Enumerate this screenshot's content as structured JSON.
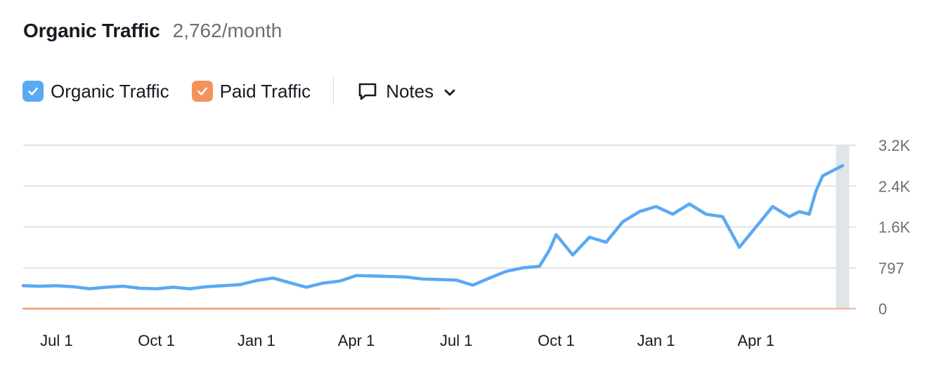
{
  "header": {
    "title": "Organic Traffic",
    "value": "2,762/month"
  },
  "legend": {
    "organic_label": "Organic Traffic",
    "paid_label": "Paid Traffic",
    "notes_label": "Notes",
    "icons": {
      "organic": "checkbox-checked-icon",
      "paid": "checkbox-checked-icon",
      "notes": "comment-icon",
      "dropdown": "chevron-down-icon"
    }
  },
  "colors": {
    "organic": "#5aa9f2",
    "paid": "#f2935a",
    "grid": "#e3e4ea",
    "highlight": "#dfe5e8"
  },
  "chart_data": {
    "type": "line",
    "y_axis": {
      "position": "right",
      "ylim": [
        0,
        3200
      ],
      "ticks": [
        0,
        797,
        1600,
        2400,
        3200
      ],
      "tick_labels": [
        "0",
        "797",
        "1.6K",
        "2.4K",
        "3.2K"
      ]
    },
    "x_axis": {
      "range": [
        0,
        25
      ],
      "ticks": [
        1,
        4,
        7,
        10,
        13,
        16,
        19,
        22
      ],
      "tick_labels": [
        "Jul 1",
        "Oct 1",
        "Jan 1",
        "Apr 1",
        "Jul 1",
        "Oct 1",
        "Jan 1",
        "Apr 1"
      ]
    },
    "grid": true,
    "series": [
      {
        "name": "Organic Traffic",
        "x": [
          0,
          0.5,
          1,
          1.5,
          2,
          2.5,
          3,
          3.5,
          4,
          4.5,
          5,
          5.5,
          6,
          6.5,
          7,
          7.5,
          8,
          8.5,
          9,
          9.5,
          10,
          10.5,
          11,
          11.5,
          12,
          12.5,
          13,
          13.5,
          14,
          14.5,
          15,
          15.5,
          15.8,
          16,
          16.5,
          17,
          17.5,
          18,
          18.5,
          19,
          19.5,
          20,
          20.5,
          21,
          21.5,
          22,
          22.5,
          23,
          23.3,
          23.6,
          23.8,
          24,
          24.3,
          24.6
        ],
        "y": [
          450,
          440,
          450,
          430,
          390,
          420,
          440,
          400,
          390,
          420,
          390,
          430,
          450,
          470,
          550,
          600,
          510,
          420,
          500,
          540,
          650,
          640,
          630,
          620,
          580,
          570,
          560,
          460,
          600,
          730,
          800,
          830,
          1150,
          1450,
          1050,
          1400,
          1300,
          1700,
          1900,
          2000,
          1850,
          2050,
          1850,
          1800,
          1200,
          1600,
          2000,
          1800,
          1900,
          1850,
          2300,
          2600,
          2700,
          2800
        ]
      },
      {
        "name": "Paid Traffic",
        "x": [
          0,
          12.5
        ],
        "y": [
          0,
          0
        ]
      }
    ]
  },
  "highlight": {
    "from_x": 24.4,
    "to_x": 24.8
  }
}
